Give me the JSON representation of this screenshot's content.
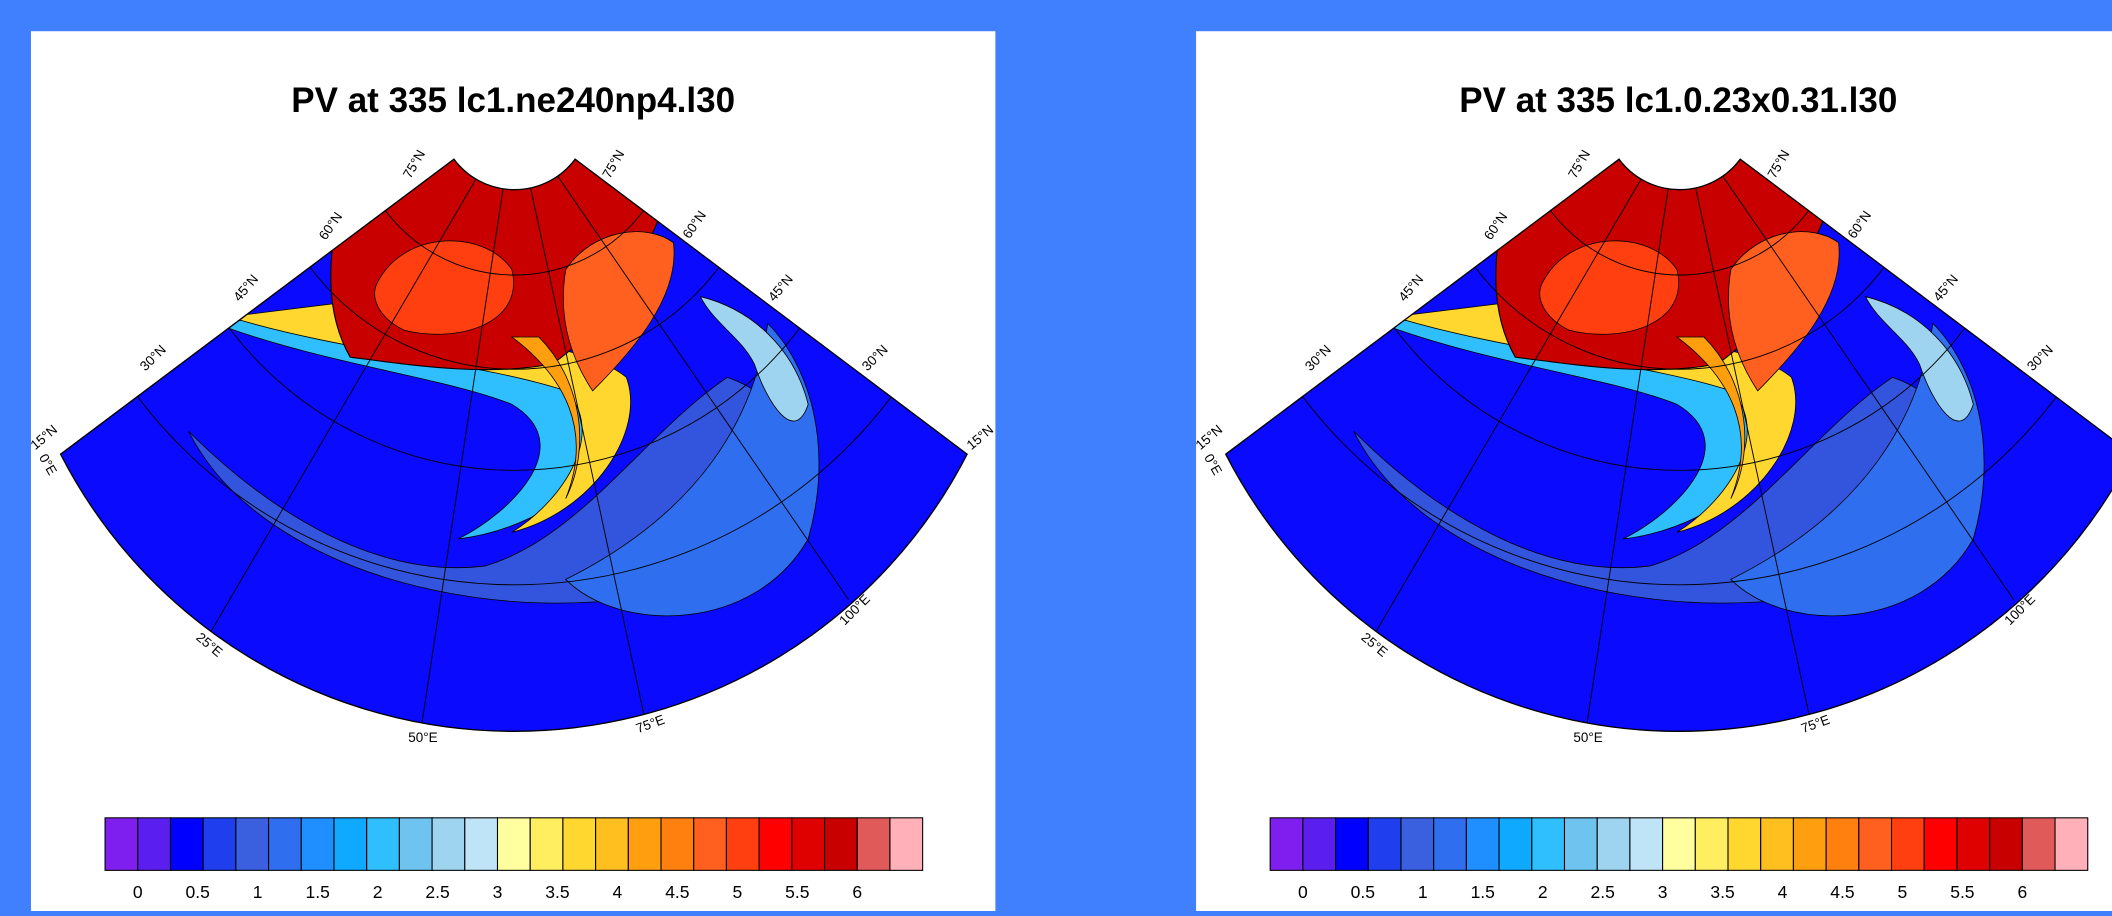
{
  "panels": [
    {
      "title": "PV at 335 lc1.ne240np4.l30",
      "lat_labels_left": [
        "75°N",
        "60°N",
        "45°N",
        "30°N",
        "15°N"
      ],
      "lat_labels_right": [
        "75°N",
        "60°N",
        "45°N",
        "30°N",
        "15°N"
      ],
      "lon_labels": [
        "0°E",
        "25°E",
        "50°E",
        "75°E",
        "100°E"
      ]
    },
    {
      "title": "PV at 335 lc1.0.23x0.31.l30",
      "lat_labels_left": [
        "75°N",
        "60°N",
        "45°N",
        "30°N",
        "15°N"
      ],
      "lat_labels_right": [
        "75°N",
        "60°N",
        "45°N",
        "30°N"
      ],
      "lon_labels": [
        "0°E",
        "25°E",
        "50°E",
        "75°E",
        "100°E"
      ]
    }
  ],
  "colorbar": {
    "ticks": [
      0,
      0.5,
      1,
      1.5,
      2,
      2.5,
      3,
      3.5,
      4,
      4.5,
      5,
      5.5,
      6
    ],
    "colors": [
      "#7f1fef",
      "#5a1fef",
      "#0000ff",
      "#1f3fef",
      "#3a5fdf",
      "#2f6fef",
      "#1f8fff",
      "#0faaff",
      "#2fbfff",
      "#6fc4ef",
      "#9fd4f0",
      "#bfe4f8",
      "#ffffa0",
      "#ffef60",
      "#ffd72f",
      "#ffbf1f",
      "#ff9f0f",
      "#ff7f0f",
      "#ff5f1f",
      "#ff3f0f",
      "#ff0000",
      "#df0000",
      "#c80000",
      "#e05a5a",
      "#ffb0b8"
    ]
  }
}
